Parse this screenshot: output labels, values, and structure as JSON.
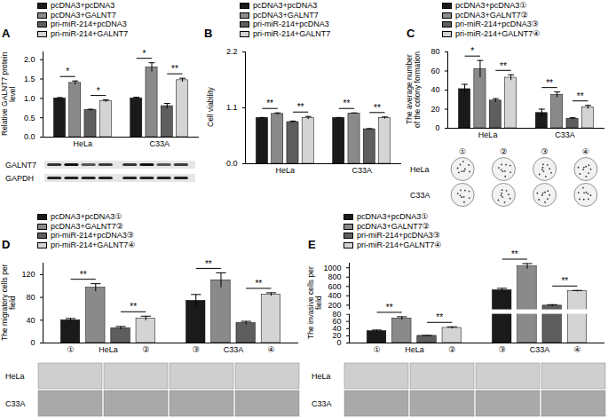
{
  "chart_data": [
    {
      "type": "bar",
      "panel": "A",
      "y_label": "Relative GALNT7 protein level",
      "legend": "top",
      "categories": [
        "HeLa",
        "C33A"
      ],
      "series": [
        {
          "name": "pcDNA3+pcDNA3",
          "color": "#1a1a1a",
          "values": [
            1.0,
            1.0
          ],
          "errors": [
            0.02,
            0.03
          ]
        },
        {
          "name": "pcDNA3+GALNT7",
          "color": "#8a8a8a",
          "values": [
            1.4,
            1.8
          ],
          "errors": [
            0.05,
            0.12
          ]
        },
        {
          "name": "pri-miR-214+pcDNA3",
          "color": "#5e5e5e",
          "values": [
            0.7,
            0.8
          ],
          "errors": [
            0.02,
            0.07
          ]
        },
        {
          "name": "pri-miR-214+GALNT7",
          "color": "#d4d4d4",
          "values": [
            0.93,
            1.47
          ],
          "errors": [
            0.03,
            0.05
          ]
        }
      ],
      "significance": [
        [
          "*",
          "*"
        ],
        [
          "*",
          "**"
        ]
      ],
      "ylim": [
        0,
        2.2
      ],
      "yticks": [
        {
          "value": 0,
          "label": "0.0"
        },
        {
          "value": 0.5,
          "label": "0.5"
        },
        {
          "value": 1,
          "label": "1.0"
        },
        {
          "value": 1.5,
          "label": "1.5"
        },
        {
          "value": 2,
          "label": "2.0"
        }
      ],
      "images": {
        "row_labels": [
          "GALNT7",
          "GAPDH"
        ]
      }
    },
    {
      "type": "bar",
      "panel": "B",
      "y_label": "Cell viability",
      "legend": "top",
      "categories": [
        "HeLa",
        "C33A"
      ],
      "series": [
        {
          "name": "pcDNA3+pcDNA3",
          "color": "#1a1a1a",
          "values": [
            0.9,
            0.9
          ],
          "errors": [
            0.01,
            0.01
          ]
        },
        {
          "name": "pcDNA3+GALNT7",
          "color": "#8a8a8a",
          "values": [
            0.98,
            0.99
          ],
          "errors": [
            0.02,
            0.01
          ]
        },
        {
          "name": "pri-miR-214+pcDNA3",
          "color": "#5e5e5e",
          "values": [
            0.82,
            0.68
          ],
          "errors": [
            0.02,
            0.01
          ]
        },
        {
          "name": "pri-miR-214+GALNT7",
          "color": "#d4d4d4",
          "values": [
            0.9,
            0.9
          ],
          "errors": [
            0.03,
            0.02
          ]
        }
      ],
      "significance": [
        [
          "**",
          "**"
        ],
        [
          "**",
          "**"
        ]
      ],
      "ylim": [
        0,
        2.2
      ],
      "yticks": [
        {
          "value": 0,
          "label": "0.0"
        },
        1.1,
        2.2
      ]
    },
    {
      "type": "bar",
      "panel": "C",
      "y_label": "The average number of the colony formation",
      "legend": "top",
      "categories": [
        "HeLa",
        "C33A"
      ],
      "series": [
        {
          "name": "pcDNA3+pcDNA3①",
          "color": "#1a1a1a",
          "values": [
            41,
            16
          ],
          "errors": [
            5,
            4
          ]
        },
        {
          "name": "pcDNA3+GALNT7②",
          "color": "#8a8a8a",
          "values": [
            62,
            35
          ],
          "errors": [
            9,
            3
          ]
        },
        {
          "name": "pri-miR-214+pcDNA3③",
          "color": "#5e5e5e",
          "values": [
            29,
            10
          ],
          "errors": [
            2,
            1
          ]
        },
        {
          "name": "pri-miR-214+GALNT7④",
          "color": "#d4d4d4",
          "values": [
            53,
            22
          ],
          "errors": [
            3,
            2
          ]
        }
      ],
      "significance": [
        [
          "*",
          "**"
        ],
        [
          "**",
          "**"
        ]
      ],
      "ylim": [
        0,
        80
      ],
      "yticks": [
        0,
        20,
        40,
        60,
        80
      ],
      "images": {
        "row_labels": [
          "HeLa",
          "C33A"
        ],
        "column_labels": [
          "①",
          "②",
          "③",
          "④"
        ]
      }
    },
    {
      "type": "bar",
      "panel": "D",
      "y_label": "The migratory cells per field",
      "legend": "top",
      "categories": [
        "HeLa",
        "C33A"
      ],
      "x_annotations": [
        [
          "①",
          "②"
        ],
        [
          "③",
          "④"
        ]
      ],
      "series": [
        {
          "name": "pcDNA3+pcDNA3①",
          "color": "#1a1a1a",
          "values": [
            40,
            74
          ],
          "errors": [
            3,
            11
          ]
        },
        {
          "name": "pcDNA3+GALNT7②",
          "color": "#8a8a8a",
          "values": [
            97,
            110
          ],
          "errors": [
            7,
            13
          ]
        },
        {
          "name": "pri-miR-214+pcDNA3③",
          "color": "#5e5e5e",
          "values": [
            26,
            35
          ],
          "errors": [
            3,
            3
          ]
        },
        {
          "name": "pri-miR-214+GALNT7④",
          "color": "#d4d4d4",
          "values": [
            43,
            85
          ],
          "errors": [
            4,
            3
          ]
        }
      ],
      "significance": [
        [
          "**",
          "**"
        ],
        [
          "**",
          "**"
        ]
      ],
      "ylim": [
        0,
        140
      ],
      "yticks": [
        0,
        40,
        80,
        120
      ],
      "images": {
        "row_labels": [
          "HeLa",
          "C33A"
        ]
      }
    },
    {
      "type": "bar",
      "panel": "E",
      "y_label": "The invasive cells per field",
      "legend": "top",
      "categories": [
        "HeLa",
        "C33A"
      ],
      "x_annotations": [
        [
          "①",
          "②"
        ],
        [
          "③",
          "④"
        ]
      ],
      "series": [
        {
          "name": "pcDNA3+pcDNA3①",
          "color": "#1a1a1a",
          "values": [
            33,
            520
          ],
          "errors": [
            3,
            40
          ]
        },
        {
          "name": "pcDNA3+GALNT7②",
          "color": "#8a8a8a",
          "values": [
            68,
            1030
          ],
          "errors": [
            5,
            60
          ]
        },
        {
          "name": "pri-miR-214+pcDNA3③",
          "color": "#5e5e5e",
          "values": [
            20,
            190
          ],
          "errors": [
            1,
            20
          ]
        },
        {
          "name": "pri-miR-214+GALNT7④",
          "color": "#d4d4d4",
          "values": [
            42,
            500
          ],
          "errors": [
            3,
            15
          ]
        }
      ],
      "significance": [
        [
          "**",
          "**"
        ],
        [
          "**",
          "**"
        ]
      ],
      "ylim": [
        0,
        1100
      ],
      "axis_break": [
        80,
        100
      ],
      "yticks": [
        0,
        20,
        40,
        60,
        80,
        200,
        400,
        600,
        800,
        1000
      ],
      "images": {
        "row_labels": [
          "HeLa",
          "C33A"
        ]
      }
    }
  ]
}
